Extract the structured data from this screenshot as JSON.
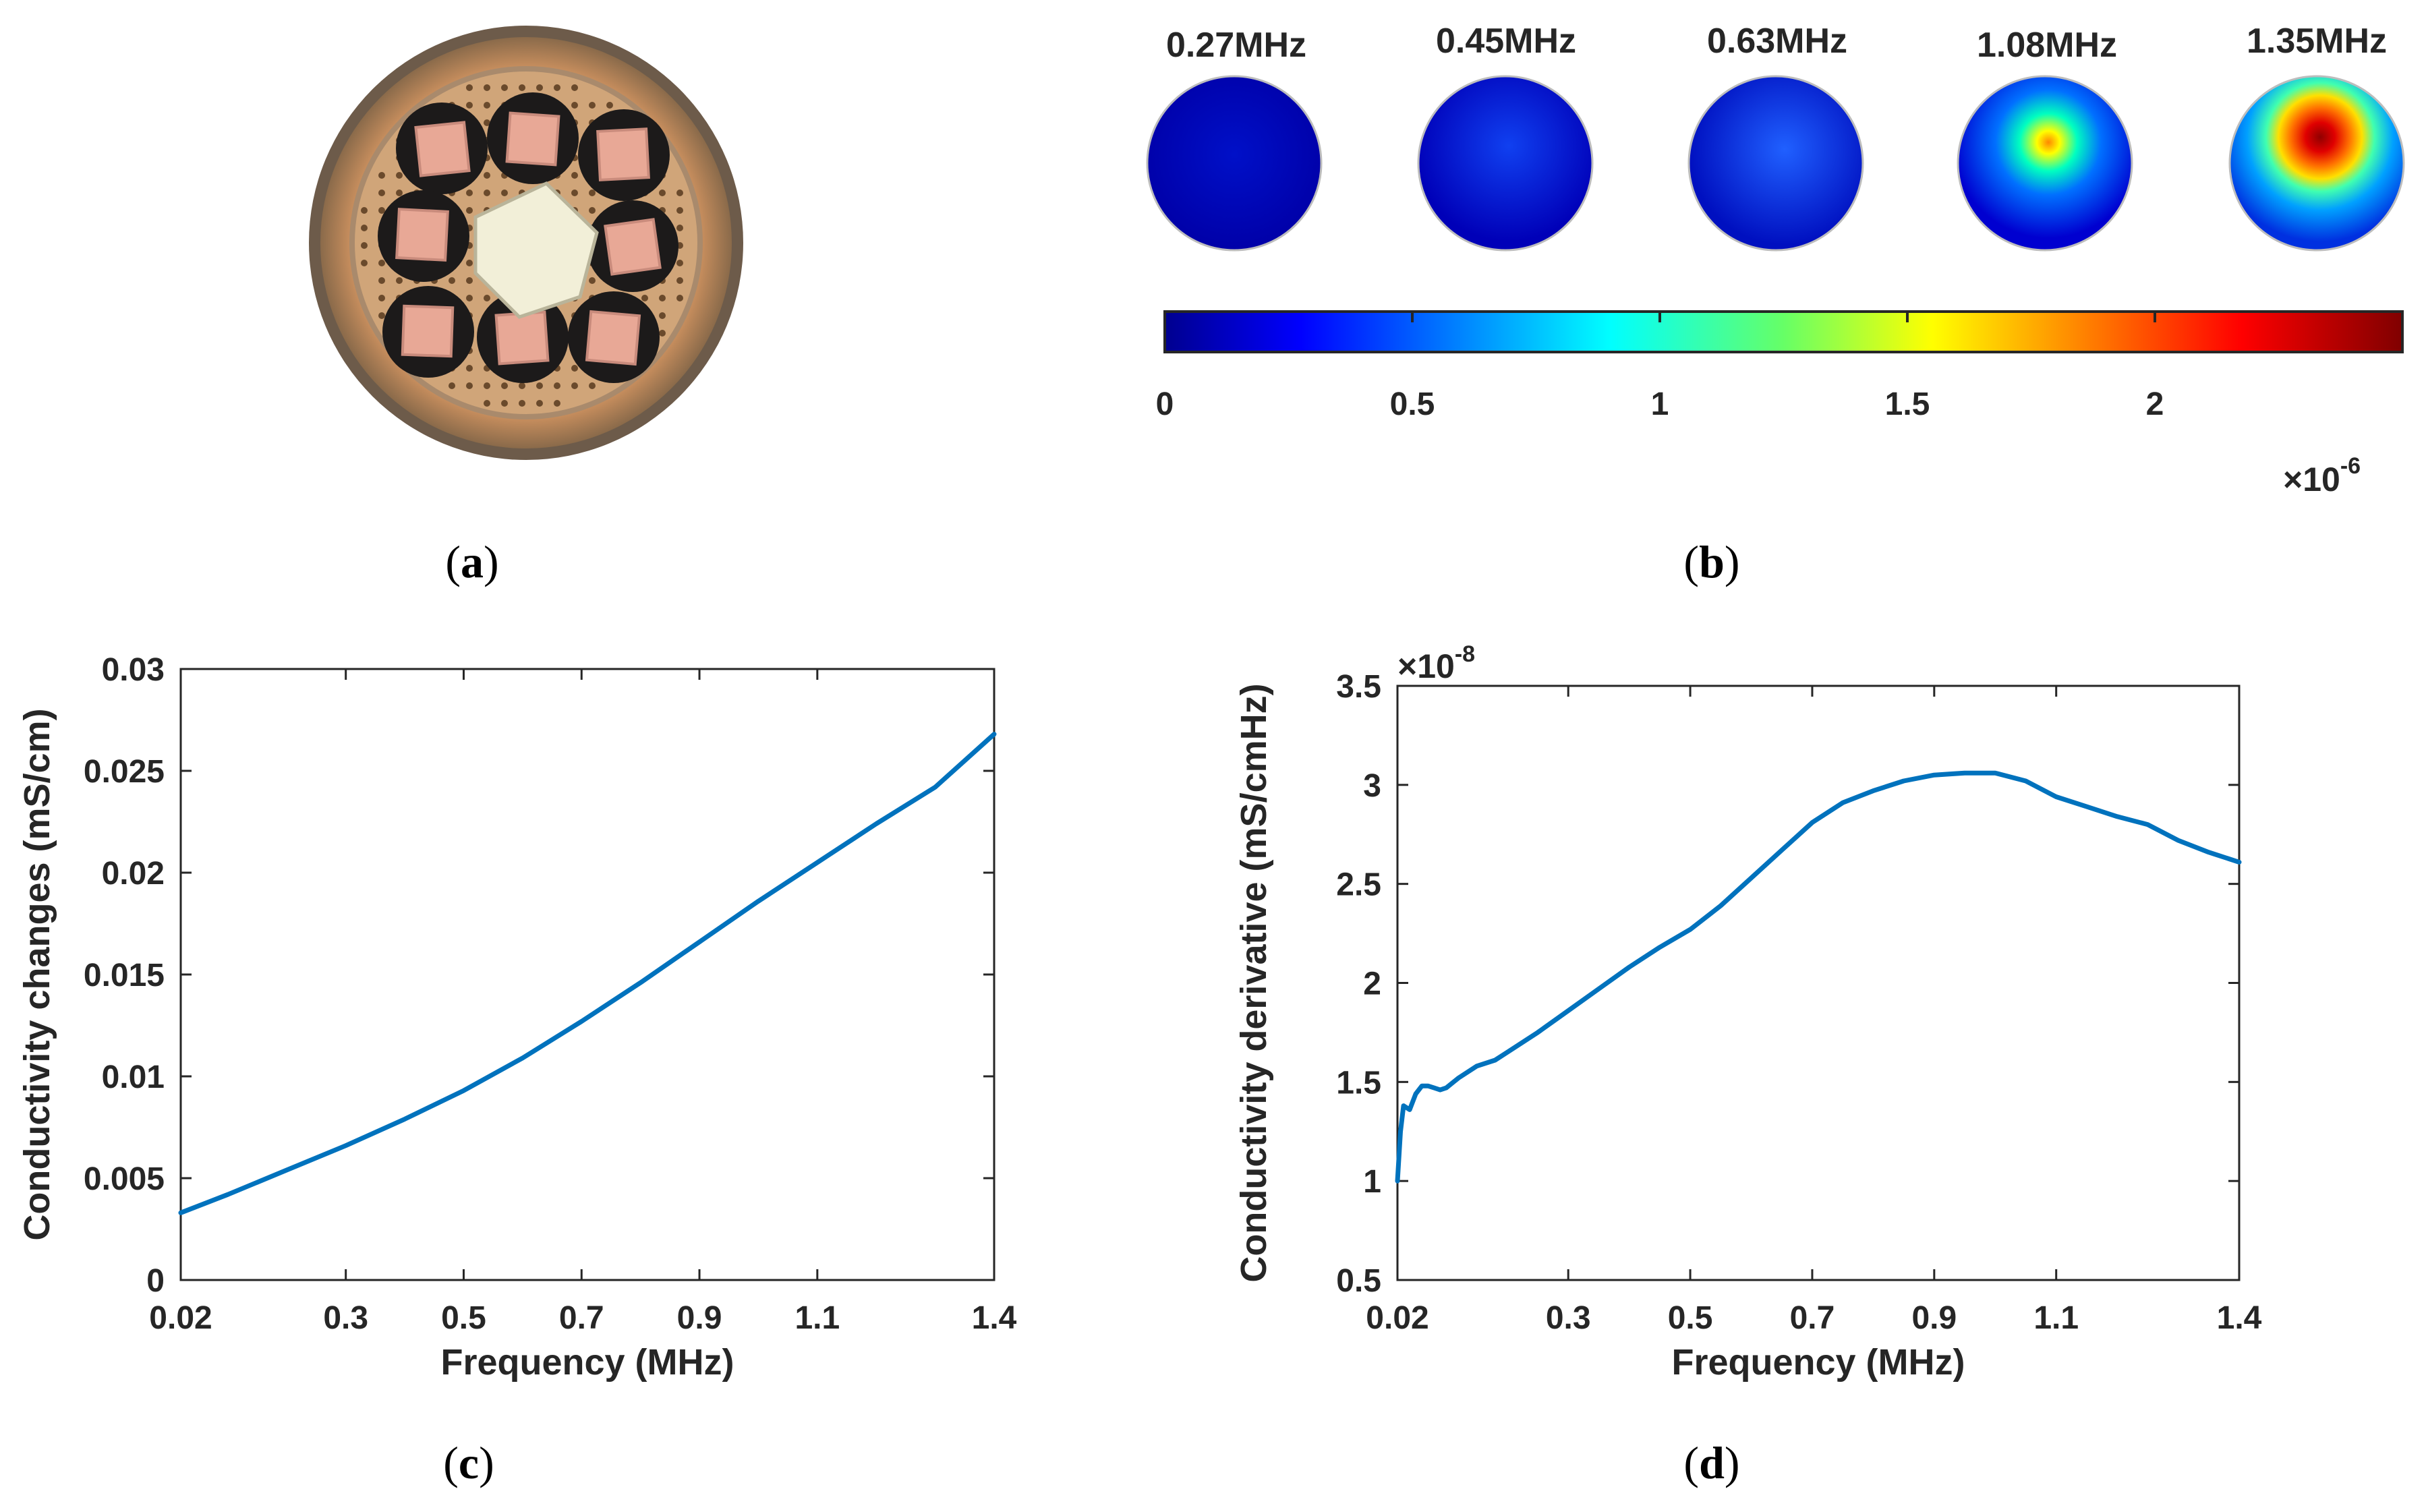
{
  "panels": {
    "a": {
      "label": "a",
      "photo_description_icon": "electrode-array-photo"
    },
    "b": {
      "label": "b",
      "frequencies": [
        "0.27MHz",
        "0.45MHz",
        "0.63MHz",
        "1.08MHz",
        "1.35MHz"
      ],
      "colorbar_ticks": [
        "0",
        "0.5",
        "1",
        "1.5",
        "2"
      ],
      "colorbar_multiplier_base": "×10",
      "colorbar_multiplier_exp": "-6"
    },
    "c": {
      "label": "c"
    },
    "d": {
      "label": "d"
    }
  },
  "colors": {
    "line": "#0072BD",
    "axis": "#262626"
  },
  "chart_data": [
    {
      "id": "c",
      "type": "line",
      "title": "",
      "xlabel": "Frequency (MHz)",
      "ylabel": "Conductivity changes (mS/cm)",
      "xlim": [
        0.02,
        1.4
      ],
      "ylim": [
        0,
        0.03
      ],
      "x_ticks": [
        0.02,
        0.3,
        0.5,
        0.7,
        0.9,
        1.1,
        1.4
      ],
      "x_tick_labels": [
        "0.02",
        "0.3",
        "0.5",
        "0.7",
        "0.9",
        "1.1",
        "1.4"
      ],
      "y_ticks": [
        0,
        0.005,
        0.01,
        0.015,
        0.02,
        0.025,
        0.03
      ],
      "y_tick_labels": [
        "0",
        "0.005",
        "0.01",
        "0.015",
        "0.02",
        "0.025",
        "0.03"
      ],
      "series": [
        {
          "name": "Conductivity changes",
          "x": [
            0.02,
            0.1,
            0.2,
            0.3,
            0.4,
            0.5,
            0.6,
            0.7,
            0.8,
            0.9,
            1.0,
            1.1,
            1.2,
            1.3,
            1.4
          ],
          "y": [
            0.0033,
            0.0042,
            0.0054,
            0.0066,
            0.0079,
            0.0093,
            0.0109,
            0.0127,
            0.0146,
            0.0166,
            0.0186,
            0.0205,
            0.0224,
            0.0242,
            0.0268
          ]
        }
      ]
    },
    {
      "id": "d",
      "type": "line",
      "title": "",
      "xlabel": "Frequency (MHz)",
      "ylabel": "Conductivity derivative (mS/cmHz)",
      "y_multiplier_base": "×10",
      "y_multiplier_exp": "-8",
      "xlim": [
        0.02,
        1.4
      ],
      "ylim": [
        0.5,
        3.5
      ],
      "x_ticks": [
        0.02,
        0.3,
        0.5,
        0.7,
        0.9,
        1.1,
        1.4
      ],
      "x_tick_labels": [
        "0.02",
        "0.3",
        "0.5",
        "0.7",
        "0.9",
        "1.1",
        "1.4"
      ],
      "y_ticks": [
        0.5,
        1,
        1.5,
        2,
        2.5,
        3,
        3.5
      ],
      "y_tick_labels": [
        "0.5",
        "1",
        "1.5",
        "2",
        "2.5",
        "3",
        "3.5"
      ],
      "series": [
        {
          "name": "Conductivity derivative",
          "x": [
            0.02,
            0.025,
            0.03,
            0.04,
            0.05,
            0.06,
            0.07,
            0.08,
            0.09,
            0.1,
            0.12,
            0.15,
            0.18,
            0.2,
            0.25,
            0.3,
            0.35,
            0.4,
            0.45,
            0.5,
            0.55,
            0.6,
            0.65,
            0.7,
            0.75,
            0.8,
            0.85,
            0.9,
            0.95,
            1.0,
            1.05,
            1.1,
            1.15,
            1.2,
            1.25,
            1.3,
            1.35,
            1.4
          ],
          "y": [
            1.0,
            1.25,
            1.38,
            1.36,
            1.44,
            1.48,
            1.48,
            1.47,
            1.46,
            1.47,
            1.52,
            1.58,
            1.61,
            1.65,
            1.75,
            1.86,
            1.97,
            2.08,
            2.18,
            2.27,
            2.39,
            2.53,
            2.67,
            2.81,
            2.91,
            2.97,
            3.02,
            3.05,
            3.06,
            3.06,
            3.02,
            2.94,
            2.89,
            2.84,
            2.8,
            2.72,
            2.66,
            2.61
          ]
        }
      ]
    }
  ]
}
